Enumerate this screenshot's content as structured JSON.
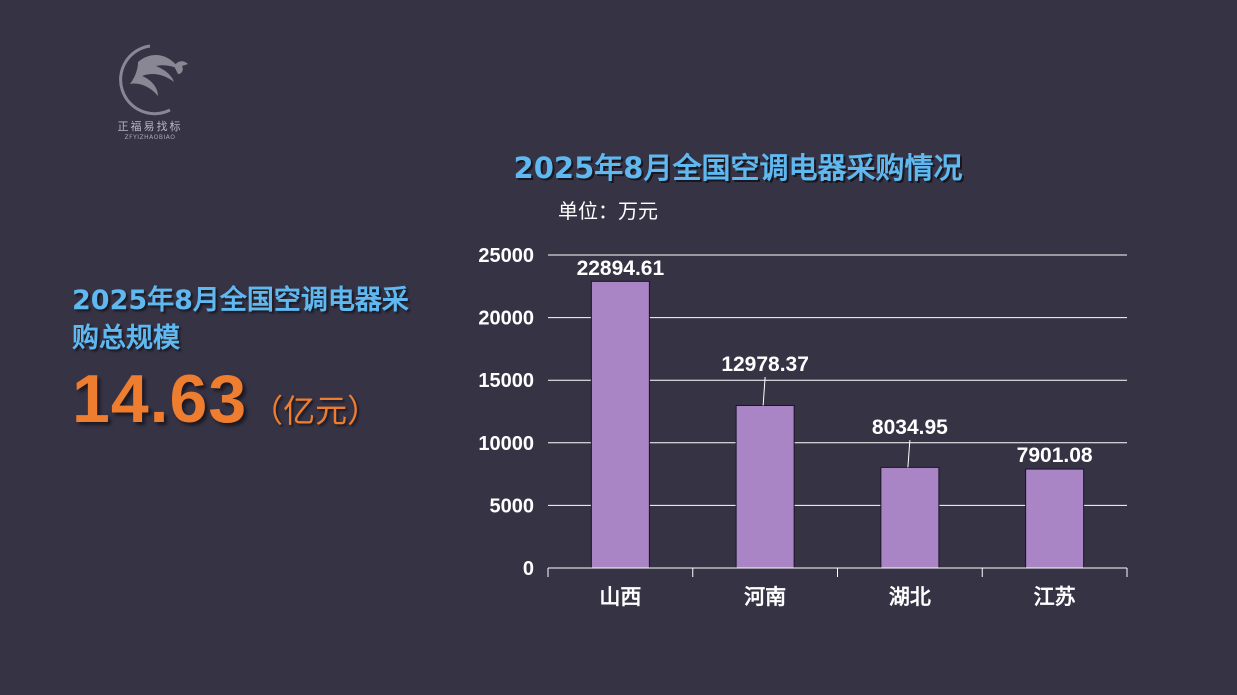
{
  "logo": {
    "brand_cn": "正福易找标",
    "brand_en": "ZFYIZHAOBIAO",
    "icon": "eagle-logo-icon"
  },
  "summary": {
    "title": "2025年8月全国空调电器采购总规模",
    "value": "14.63",
    "unit": "（亿元）"
  },
  "colors": {
    "background": "#363345",
    "title_blue": "#5fb8f0",
    "accent_orange": "#ef7d2f",
    "bar": "#a985c6"
  },
  "chart_data": {
    "type": "bar",
    "title": "2025年8月全国空调电器采购情况",
    "unit_label": "单位：万元",
    "categories": [
      "山西",
      "河南",
      "湖北",
      "江苏"
    ],
    "values": [
      22894.61,
      12978.37,
      8034.95,
      7901.08
    ],
    "value_labels": [
      "22894.61",
      "12978.37",
      "8034.95",
      "7901.08"
    ],
    "ylim": [
      0,
      25000
    ],
    "yticks": [
      0,
      5000,
      10000,
      15000,
      20000,
      25000
    ],
    "grid": true,
    "legend": false
  }
}
